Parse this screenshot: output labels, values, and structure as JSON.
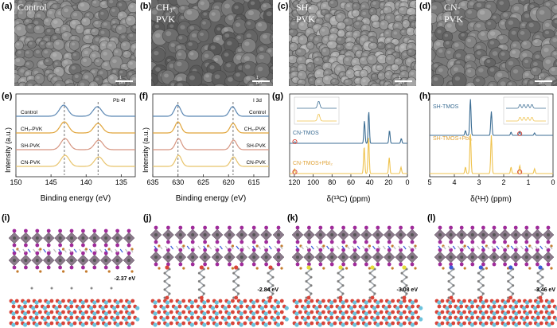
{
  "sem": {
    "a": {
      "letter": "(a)",
      "title": "Control",
      "scale": "1 μm"
    },
    "b": {
      "letter": "(b)",
      "title": "CH₃-PVK",
      "scale": "1 μm"
    },
    "c": {
      "letter": "(c)",
      "title": "SH-PVK",
      "scale": "1 μm"
    },
    "d": {
      "letter": "(d)",
      "title": "CN-PVK",
      "scale": "1 μm"
    }
  },
  "colors": {
    "control": "#5b87b3",
    "ch3": "#e0a43a",
    "sh": "#d69580",
    "cn": "#e8c36a",
    "mol_blue": "#3d6e94",
    "mol_yellow": "#efc34f",
    "marker": "#d23b2d"
  },
  "chart_data": [
    {
      "panel": "(e)",
      "type": "line",
      "annotation": "Pb 4f",
      "xlabel": "Binding energy (eV)",
      "ylabel": "Intensity (a.u.)",
      "xlim": [
        150,
        133
      ],
      "xticks": [
        "150",
        "145",
        "140",
        "135"
      ],
      "dashed_lines": [
        143.1,
        138.3
      ],
      "series": [
        {
          "name": "Control",
          "peaks": [
            143.2,
            138.4
          ]
        },
        {
          "name": "CH₃-PVK",
          "peaks": [
            143.1,
            138.3
          ]
        },
        {
          "name": "SH-PVK",
          "peaks": [
            143.0,
            138.2
          ]
        },
        {
          "name": "CN-PVK",
          "peaks": [
            143.0,
            138.2
          ]
        }
      ]
    },
    {
      "panel": "(f)",
      "type": "line",
      "annotation": "I 3d",
      "xlabel": "Binding energy (eV)",
      "xlim": [
        635,
        612
      ],
      "xticks": [
        "635",
        "630",
        "625",
        "620",
        "615"
      ],
      "dashed_lines": [
        630.0,
        619.1
      ],
      "series": [
        {
          "name": "Control",
          "peaks": [
            630.1,
            619.2
          ]
        },
        {
          "name": "CH₃-PVK",
          "peaks": [
            630.0,
            619.1
          ]
        },
        {
          "name": "SH-PVK",
          "peaks": [
            629.9,
            619.0
          ]
        },
        {
          "name": "CN-PVK",
          "peaks": [
            629.9,
            619.0
          ]
        }
      ]
    },
    {
      "panel": "(g)",
      "type": "line",
      "xlabel": "δ(¹³C) (ppm)",
      "xlim": [
        125,
        0
      ],
      "xticks": [
        "120",
        "100",
        "80",
        "60",
        "40",
        "20",
        "0"
      ],
      "series": [
        {
          "name": "CN-TMOS",
          "peaks": [
            119.5,
            45.6,
            41.0,
            19.0,
            6.5
          ]
        },
        {
          "name": "CN-TMOS+PbI₂",
          "peaks": [
            119.8,
            45.9,
            41.2,
            19.3,
            6.8
          ]
        }
      ],
      "marker_ppm": 119.5
    },
    {
      "panel": "(h)",
      "type": "line",
      "xlabel": "δ(¹H) (ppm)",
      "xlim": [
        5,
        0
      ],
      "xticks": [
        "5",
        "4",
        "3",
        "2",
        "1",
        "0"
      ],
      "series": [
        {
          "name": "SH-TMOS",
          "peaks": [
            3.55,
            3.35,
            2.5,
            1.7,
            1.35,
            0.75
          ]
        },
        {
          "name": "SH-TMOS+PbI₂",
          "peaks": [
            3.55,
            3.35,
            2.5,
            1.7,
            1.35,
            0.75
          ]
        }
      ],
      "marker_ppm": 1.35
    }
  ],
  "models": [
    {
      "letter": "(i)",
      "energy": "-2.37 eV"
    },
    {
      "letter": "(j)",
      "energy": "-2.84 eV"
    },
    {
      "letter": "(k)",
      "energy": "-3.08 eV"
    },
    {
      "letter": "(l)",
      "energy": "-3.46 eV"
    }
  ]
}
